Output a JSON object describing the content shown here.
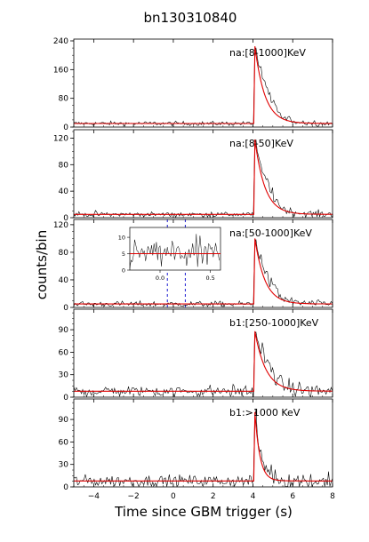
{
  "figure": {
    "title": "bn130310840",
    "xlabel": "Time since GBM trigger (s)",
    "ylabel": "counts/bin"
  },
  "colors": {
    "light_curve": "#000000",
    "fit": "#e00000",
    "marker": "#0000cc"
  },
  "chart_data": [
    {
      "type": "line",
      "label": "na:[8-1000]KeV",
      "xlim": [
        -5,
        8
      ],
      "ylim": [
        0,
        240
      ],
      "yticks": [
        0,
        80,
        160,
        240
      ],
      "xticks": [
        -4,
        -2,
        0,
        2,
        4,
        6,
        8
      ],
      "series": [
        {
          "values": "light curve (black)",
          "baseline": 10,
          "noise": 3,
          "peak_time": 4.1,
          "peak": 240,
          "decay": 0.55
        },
        {
          "values": "fit (red)",
          "baseline": 10,
          "peak_time": 4.1,
          "peak": 225,
          "decay": 0.5
        }
      ]
    },
    {
      "type": "line",
      "label": "na:[8-50]KeV",
      "xlim": [
        -5,
        8
      ],
      "ylim": [
        0,
        130
      ],
      "yticks": [
        0,
        40,
        80,
        120
      ],
      "xticks": [
        -4,
        -2,
        0,
        2,
        4,
        6,
        8
      ],
      "series": [
        {
          "values": "light curve (black)",
          "baseline": 5,
          "noise": 2,
          "peak_time": 4.1,
          "peak": 125,
          "decay": 0.55
        },
        {
          "values": "fit (red)",
          "baseline": 5,
          "peak_time": 4.1,
          "peak": 118,
          "decay": 0.5
        }
      ]
    },
    {
      "type": "line",
      "label": "na:[50-1000]KeV",
      "xlim": [
        -5,
        8
      ],
      "ylim": [
        0,
        125
      ],
      "yticks": [
        0,
        40,
        80,
        120
      ],
      "xticks": [
        -4,
        -2,
        0,
        2,
        4,
        6,
        8
      ],
      "markers": [
        -0.3,
        0.6
      ],
      "series": [
        {
          "values": "light curve (black)",
          "baseline": 5,
          "noise": 2,
          "peak_time": 4.1,
          "peak": 108,
          "decay": 0.55
        },
        {
          "values": "fit (red)",
          "baseline": 5,
          "peak_time": 4.1,
          "peak": 100,
          "decay": 0.5
        }
      ],
      "inset": {
        "xlim": [
          -0.3,
          0.6
        ],
        "ylim": [
          0,
          13
        ],
        "yticks": [
          0,
          5,
          10
        ],
        "xticks": [
          0.0,
          0.5
        ],
        "baseline": 5,
        "noise": 2.5
      }
    },
    {
      "type": "line",
      "label": "b1:[250-1000]KeV",
      "xlim": [
        -5,
        8
      ],
      "ylim": [
        0,
        115
      ],
      "yticks": [
        0,
        30,
        60,
        90
      ],
      "xticks": [
        -4,
        -2,
        0,
        2,
        4,
        6,
        8
      ],
      "series": [
        {
          "values": "light curve (black)",
          "baseline": 8,
          "noise": 4,
          "peak_time": 4.1,
          "peak": 95,
          "decay": 0.6
        },
        {
          "values": "fit (red)",
          "baseline": 8,
          "peak_time": 4.1,
          "peak": 88,
          "decay": 0.55
        }
      ]
    },
    {
      "type": "line",
      "label": "b1:>1000 KeV",
      "xlim": [
        -5,
        8
      ],
      "ylim": [
        0,
        115
      ],
      "yticks": [
        0,
        30,
        60,
        90
      ],
      "xticks": [
        -4,
        -2,
        0,
        2,
        4,
        6,
        8
      ],
      "series": [
        {
          "values": "light curve (black)",
          "baseline": 8,
          "noise": 4,
          "peak_time": 4.1,
          "peak": 110,
          "decay": 0.25
        },
        {
          "values": "fit (red)",
          "baseline": 8,
          "peak_time": 4.1,
          "peak": 100,
          "decay": 0.25
        }
      ]
    }
  ]
}
